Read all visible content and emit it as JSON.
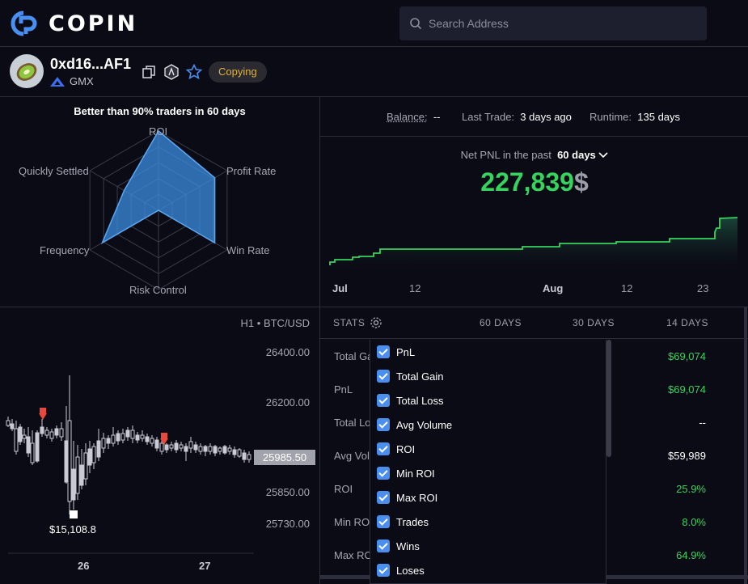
{
  "app": {
    "brand": "COPIN"
  },
  "search": {
    "placeholder": "Search Address"
  },
  "trader": {
    "address": "0xd16...AF1",
    "protocol": "GMX",
    "status_badge": "Copying"
  },
  "radar": {
    "title": "Better than 90% traders in 60 days",
    "axes": [
      "ROI",
      "Profit Rate",
      "Win Rate",
      "Risk Control",
      "Frequency",
      "Quickly Settled"
    ],
    "values": [
      1.0,
      0.82,
      0.82,
      0.0,
      0.82,
      0.5
    ]
  },
  "summary": {
    "balance_label": "Balance:",
    "balance_value": "--",
    "last_trade_label": "Last Trade:",
    "last_trade_value": "3 days ago",
    "runtime_label": "Runtime:",
    "runtime_value": "135 days"
  },
  "pnl": {
    "caption": "Net PNL in the past",
    "period": "60 days",
    "value": "227,839",
    "currency": "$",
    "axis_labels": [
      "Jul",
      "12",
      "Aug",
      "12",
      "23"
    ]
  },
  "price_chart": {
    "pair": "H1 • BTC/USD",
    "price_labels": [
      "26400.00",
      "26200.00",
      "25850.00",
      "25730.00"
    ],
    "current_price": "25985.50",
    "low_marker": "$15,108.8",
    "x_labels": [
      "26",
      "27"
    ]
  },
  "stats": {
    "title": "STATS",
    "columns": [
      "60 DAYS",
      "30 DAYS",
      "14 DAYS"
    ],
    "rows": [
      {
        "label": "Total Ga",
        "value": "$69,074"
      },
      {
        "label": "PnL",
        "value": "$69,074"
      },
      {
        "label": "Total Lo",
        "value": "--"
      },
      {
        "label": "Avg Vol",
        "value": "$59,989"
      },
      {
        "label": "ROI",
        "value": "25.9%"
      },
      {
        "label": "Min RO",
        "value": "8.0%"
      },
      {
        "label": "Max RO",
        "value": "64.9%"
      }
    ],
    "menu": [
      "PnL",
      "Total Gain",
      "Total Loss",
      "Avg Volume",
      "ROI",
      "Min ROI",
      "Max ROI",
      "Trades",
      "Wins",
      "Loses"
    ]
  },
  "colors": {
    "accent_green": "#36d45e",
    "brand_blue": "#4a8ef0",
    "badge_gold": "#e0b43a",
    "marker_red": "#e8493d"
  }
}
